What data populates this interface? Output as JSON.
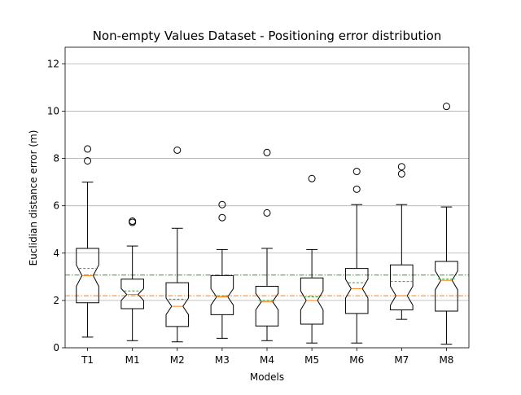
{
  "chart_data": {
    "type": "box",
    "title": "Non-empty Values Dataset - Positioning error distribution",
    "xlabel": "Models",
    "ylabel": "Euclidian distance error (m)",
    "ylim": [
      0,
      12.7
    ],
    "yticks": [
      0,
      2,
      4,
      6,
      8,
      10,
      12
    ],
    "grid": "horizontal",
    "notched": true,
    "show_means": "dashed line",
    "categories": [
      "T1",
      "M1",
      "M2",
      "M3",
      "M4",
      "M5",
      "M6",
      "M7",
      "M8"
    ],
    "boxes": [
      {
        "label": "T1",
        "whisker_low": 0.45,
        "q1": 1.9,
        "median": 3.05,
        "mean": 3.35,
        "q3": 4.2,
        "whisker_high": 7.0,
        "notch_low": 2.6,
        "notch_high": 3.5,
        "outliers": [
          7.9,
          8.4
        ]
      },
      {
        "label": "M1",
        "whisker_low": 0.3,
        "q1": 1.65,
        "median": 2.25,
        "mean": 2.4,
        "q3": 2.9,
        "whisker_high": 4.3,
        "notch_low": 2.0,
        "notch_high": 2.5,
        "outliers": [
          5.3,
          5.35
        ]
      },
      {
        "label": "M2",
        "whisker_low": 0.25,
        "q1": 0.9,
        "median": 1.75,
        "mean": 2.05,
        "q3": 2.75,
        "whisker_high": 5.05,
        "notch_low": 1.4,
        "notch_high": 2.1,
        "outliers": [
          8.35
        ]
      },
      {
        "label": "M3",
        "whisker_low": 0.4,
        "q1": 1.4,
        "median": 2.15,
        "mean": 2.2,
        "q3": 3.05,
        "whisker_high": 4.15,
        "notch_low": 1.8,
        "notch_high": 2.5,
        "outliers": [
          5.5,
          6.05
        ]
      },
      {
        "label": "M4",
        "whisker_low": 0.3,
        "q1": 0.92,
        "median": 1.95,
        "mean": 2.0,
        "q3": 2.6,
        "whisker_high": 4.2,
        "notch_low": 1.6,
        "notch_high": 2.3,
        "outliers": [
          5.7,
          8.25
        ]
      },
      {
        "label": "M5",
        "whisker_low": 0.2,
        "q1": 1.0,
        "median": 2.0,
        "mean": 2.15,
        "q3": 2.95,
        "whisker_high": 4.15,
        "notch_low": 1.6,
        "notch_high": 2.4,
        "outliers": [
          7.15
        ]
      },
      {
        "label": "M6",
        "whisker_low": 0.2,
        "q1": 1.45,
        "median": 2.5,
        "mean": 2.75,
        "q3": 3.35,
        "whisker_high": 6.05,
        "notch_low": 2.1,
        "notch_high": 2.9,
        "outliers": [
          6.7,
          7.45
        ]
      },
      {
        "label": "M7",
        "whisker_low": 1.2,
        "q1": 1.6,
        "median": 2.2,
        "mean": 2.8,
        "q3": 3.5,
        "whisker_high": 6.05,
        "notch_low": 1.8,
        "notch_high": 2.6,
        "outliers": [
          7.35,
          7.65
        ]
      },
      {
        "label": "M8",
        "whisker_low": 0.15,
        "q1": 1.55,
        "median": 2.85,
        "mean": 2.9,
        "q3": 3.65,
        "whisker_high": 5.95,
        "notch_low": 2.45,
        "notch_high": 3.25,
        "outliers": [
          10.2
        ]
      }
    ],
    "reference_lines": [
      {
        "y": 3.07,
        "style": "dash-dot",
        "color": "#2ca02c"
      },
      {
        "y": 2.2,
        "style": "dash-dot",
        "color": "#ff7f0e"
      }
    ],
    "colors": {
      "median": "#ff7f0e",
      "mean": "#2ca02c",
      "box": "#000000",
      "grid": "#b0b0b0"
    }
  }
}
